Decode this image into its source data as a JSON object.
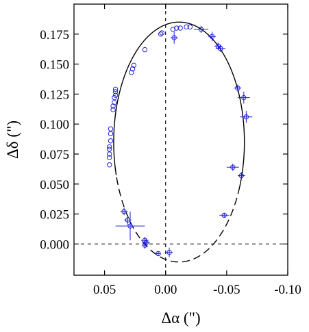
{
  "chart_data": {
    "type": "scatter",
    "xlabel": "Δα (\")",
    "ylabel": "Δδ (\")",
    "xlim": [
      0.075,
      -0.1
    ],
    "ylim": [
      -0.026,
      0.2
    ],
    "x_reversed": true,
    "x_ticks": [
      0.05,
      0.0,
      -0.05,
      -0.1
    ],
    "x_tick_labels": [
      "0.05",
      "0.00",
      "-0.05",
      "-0.10"
    ],
    "y_ticks": [
      0.0,
      0.025,
      0.05,
      0.075,
      0.1,
      0.125,
      0.15,
      0.175
    ],
    "y_tick_labels": [
      "0.000",
      "0.025",
      "0.050",
      "0.075",
      "0.100",
      "0.125",
      "0.150",
      "0.175"
    ],
    "reference_lines": {
      "x": 0.0,
      "y": 0.0,
      "style": "dashed"
    },
    "orbit": {
      "center": [
        -0.011,
        0.085
      ],
      "semi_axis_x": 0.0535,
      "semi_axis_y": 0.1
    },
    "colors": {
      "points": "#1f1fd6",
      "orbit": "#000000",
      "axes": "#000000"
    },
    "series": [
      {
        "marker": "open-circle",
        "points": [
          {
            "x": 0.046,
            "y": 0.066
          },
          {
            "x": 0.046,
            "y": 0.072
          },
          {
            "x": 0.046,
            "y": 0.075
          },
          {
            "x": 0.046,
            "y": 0.079
          },
          {
            "x": 0.046,
            "y": 0.081
          },
          {
            "x": 0.045,
            "y": 0.086
          },
          {
            "x": 0.045,
            "y": 0.092
          },
          {
            "x": 0.045,
            "y": 0.096
          },
          {
            "x": 0.043,
            "y": 0.112
          },
          {
            "x": 0.043,
            "y": 0.115
          },
          {
            "x": 0.042,
            "y": 0.118
          },
          {
            "x": 0.042,
            "y": 0.122
          },
          {
            "x": 0.041,
            "y": 0.124
          },
          {
            "x": 0.041,
            "y": 0.127
          },
          {
            "x": 0.041,
            "y": 0.129
          },
          {
            "x": 0.028,
            "y": 0.143
          },
          {
            "x": 0.027,
            "y": 0.146
          },
          {
            "x": 0.026,
            "y": 0.149
          },
          {
            "x": 0.017,
            "y": 0.162
          },
          {
            "x": 0.004,
            "y": 0.175
          },
          {
            "x": 0.003,
            "y": 0.176
          },
          {
            "x": -0.006,
            "y": 0.179
          },
          {
            "x": -0.009,
            "y": 0.18
          },
          {
            "x": -0.012,
            "y": 0.18
          },
          {
            "x": -0.017,
            "y": 0.181
          },
          {
            "x": -0.02,
            "y": 0.181
          }
        ]
      },
      {
        "marker": "open-circle-errorbar",
        "points": [
          {
            "x": -0.007,
            "y": 0.172,
            "xerr": 0.003,
            "yerr": 0.005
          },
          {
            "x": -0.029,
            "y": 0.179,
            "xerr": 0.006,
            "yerr": 0.003
          },
          {
            "x": -0.038,
            "y": 0.173,
            "xerr": 0.003,
            "yerr": 0.004
          },
          {
            "x": -0.043,
            "y": 0.165,
            "xerr": 0.003,
            "yerr": 0.003
          },
          {
            "x": -0.045,
            "y": 0.163,
            "xerr": 0.004,
            "yerr": 0.003
          },
          {
            "x": -0.059,
            "y": 0.13,
            "xerr": 0.003,
            "yerr": 0.003
          },
          {
            "x": -0.064,
            "y": 0.122,
            "xerr": 0.005,
            "yerr": 0.005
          },
          {
            "x": -0.066,
            "y": 0.106,
            "xerr": 0.005,
            "yerr": 0.005
          },
          {
            "x": -0.055,
            "y": 0.064,
            "xerr": 0.005,
            "yerr": 0.003
          },
          {
            "x": -0.062,
            "y": 0.057,
            "xerr": 0.003,
            "yerr": 0.003
          },
          {
            "x": -0.048,
            "y": 0.024,
            "xerr": 0.004,
            "yerr": 0.002
          },
          {
            "x": 0.034,
            "y": 0.027,
            "xerr": 0.003,
            "yerr": 0.003
          },
          {
            "x": 0.031,
            "y": 0.02,
            "xerr": 0.003,
            "yerr": 0.004
          },
          {
            "x": 0.029,
            "y": 0.015,
            "xerr": 0.012,
            "yerr": 0.012
          },
          {
            "x": 0.017,
            "y": 0.003,
            "xerr": 0.003,
            "yerr": 0.003
          },
          {
            "x": 0.016,
            "y": 0.001,
            "xerr": 0.003,
            "yerr": 0.003
          },
          {
            "x": 0.017,
            "y": -0.001,
            "xerr": 0.002,
            "yerr": 0.003
          },
          {
            "x": 0.006,
            "y": -0.008,
            "xerr": 0.002,
            "yerr": 0.002
          },
          {
            "x": -0.003,
            "y": -0.007,
            "xerr": 0.003,
            "yerr": 0.004
          }
        ]
      }
    ]
  }
}
